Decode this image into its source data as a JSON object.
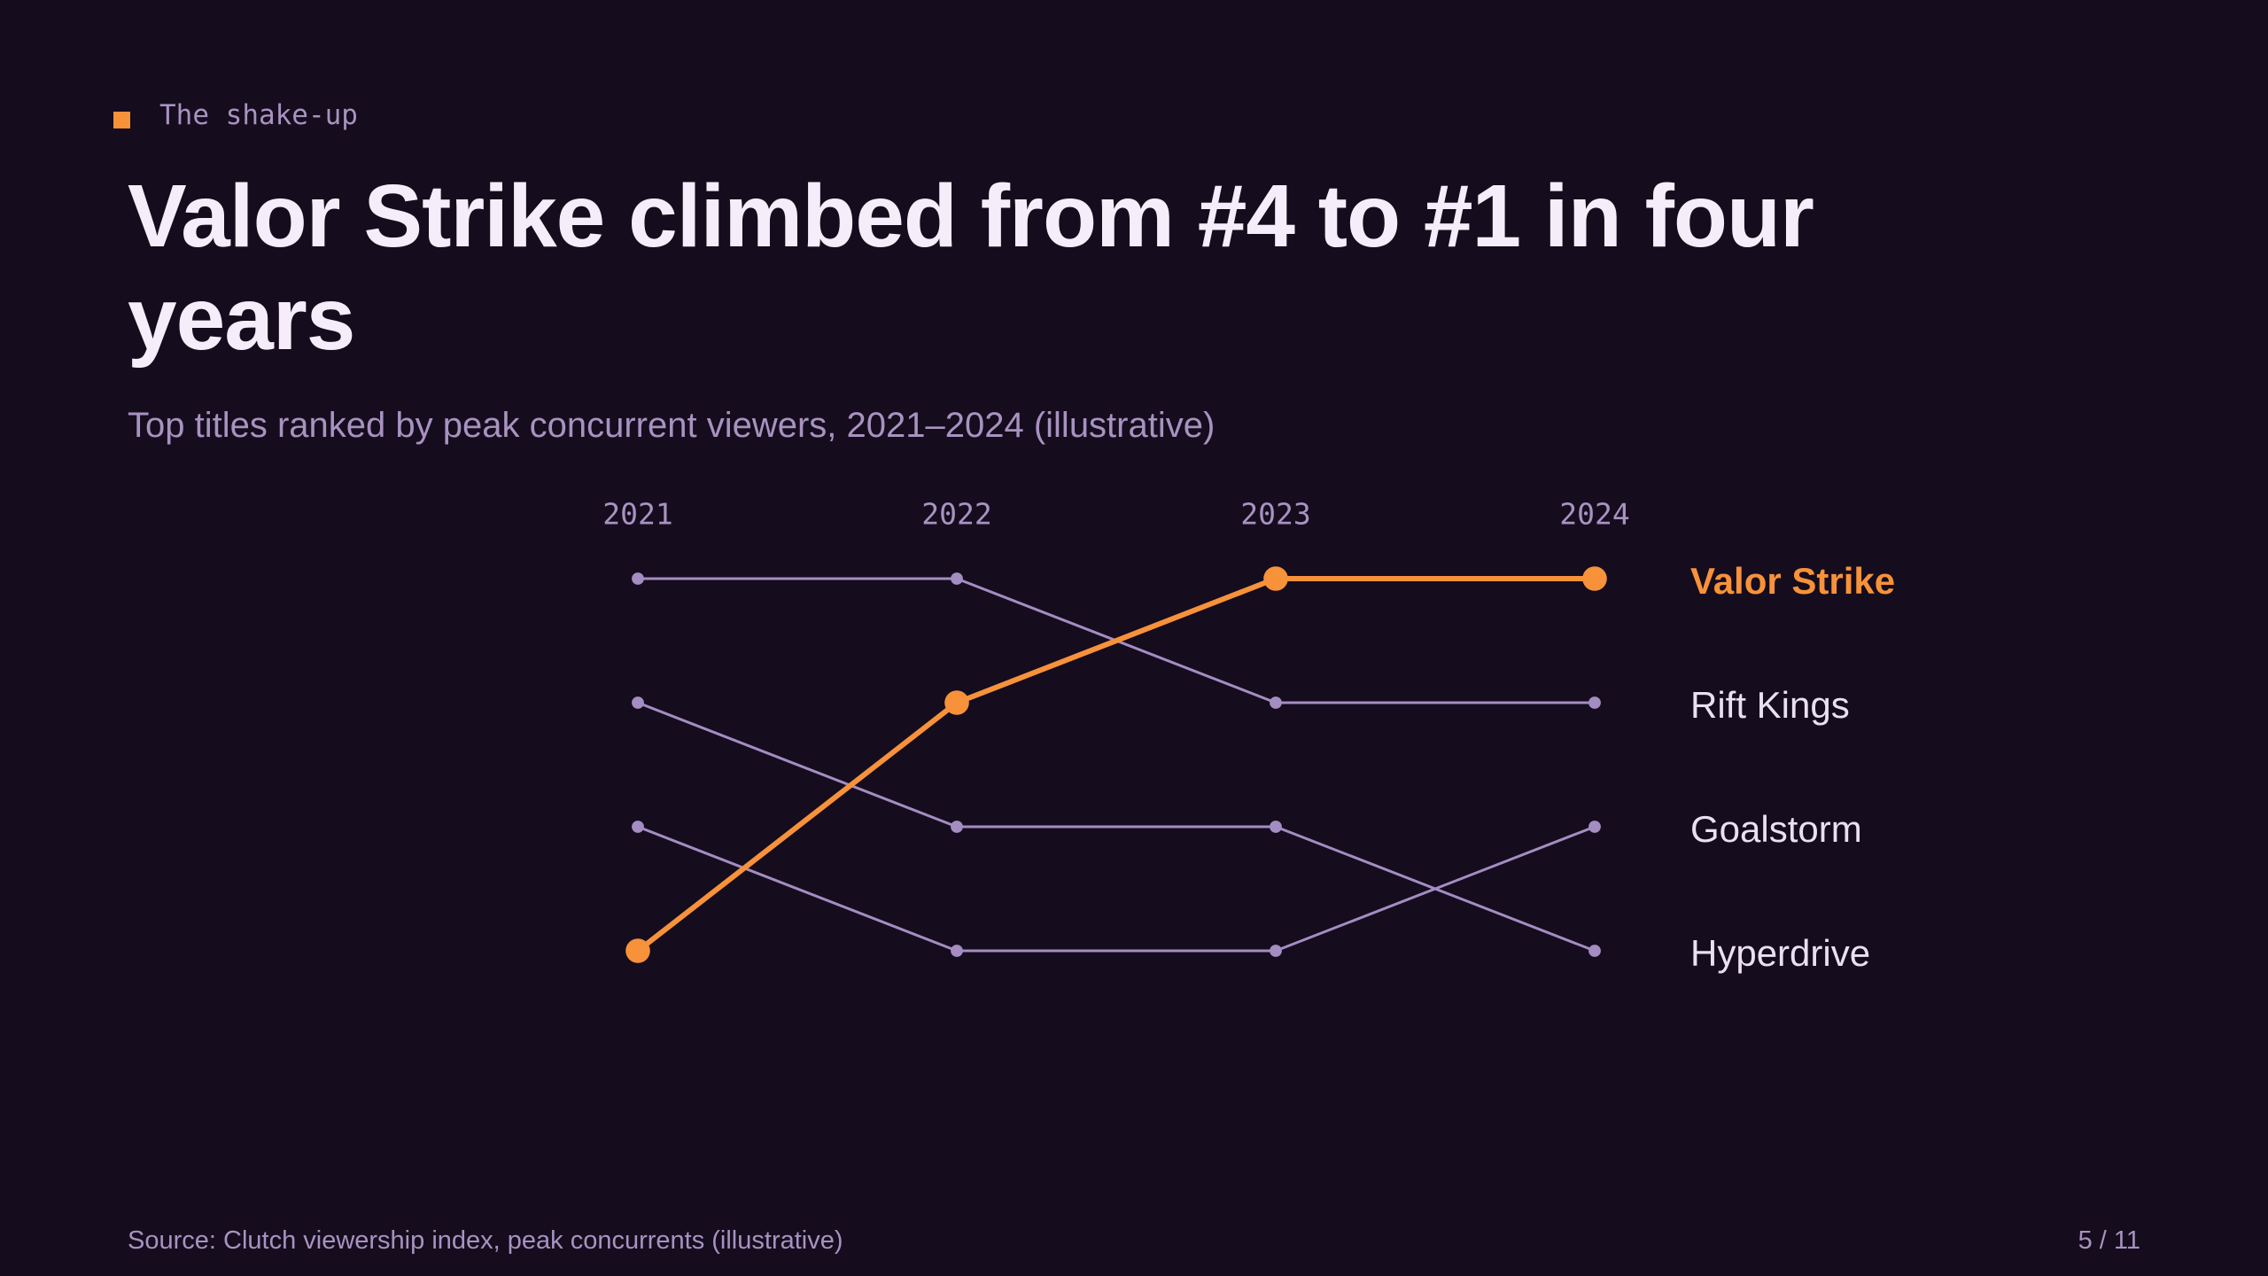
{
  "chart_data": {
    "type": "bump",
    "kicker": "The shake-up",
    "title": "Valor Strike climbed from #4 to #1 in four years",
    "subtitle": "Top titles ranked by peak concurrent viewers, 2021–2024 (illustrative)",
    "source": "Source: Clutch viewership index, peak concurrents (illustrative)",
    "page": "5 / 11",
    "categories": [
      "2021",
      "2022",
      "2023",
      "2024"
    ],
    "ylim": [
      4,
      1
    ],
    "series": [
      {
        "name": "Valor Strike",
        "color": "#f7923a",
        "line_width": 6,
        "values": [
          4,
          2,
          1,
          1
        ]
      },
      {
        "name": "Rift Kings",
        "color": "#a48dc2",
        "line_width": 3,
        "values": [
          1,
          1,
          2,
          2
        ]
      },
      {
        "name": "Goalstorm",
        "color": "#a48dc2",
        "line_width": 3,
        "values": [
          3,
          4,
          4,
          3
        ]
      },
      {
        "name": "Hyperdrive",
        "color": "#a48dc2",
        "line_width": 3,
        "values": [
          2,
          3,
          3,
          4
        ]
      }
    ]
  }
}
